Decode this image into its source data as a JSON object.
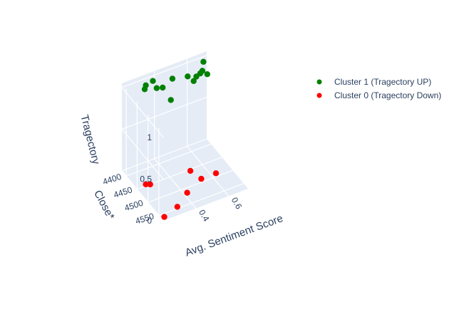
{
  "chart_data": {
    "type": "scatter3d",
    "x_label": "Avg. Sentiment Score",
    "y_label": "Close*",
    "z_label": "Tragectory",
    "x_ticks": [
      "0.4",
      "0.6"
    ],
    "y_ticks": [
      "4400",
      "4450",
      "4500",
      "4550"
    ],
    "z_ticks": [
      "0",
      "0.5",
      "1"
    ],
    "legend_position": "top-right",
    "series": [
      {
        "name": "Cluster 1 (Tragectory UP)",
        "color": "#008000",
        "points": [
          {
            "x": 0.3,
            "y": 4410,
            "z": 1
          },
          {
            "x": 0.32,
            "y": 4400,
            "z": 1
          },
          {
            "x": 0.36,
            "y": 4420,
            "z": 1
          },
          {
            "x": 0.37,
            "y": 4395,
            "z": 1
          },
          {
            "x": 0.39,
            "y": 4425,
            "z": 1
          },
          {
            "x": 0.38,
            "y": 4470,
            "z": 1
          },
          {
            "x": 0.47,
            "y": 4410,
            "z": 1
          },
          {
            "x": 0.55,
            "y": 4420,
            "z": 1
          },
          {
            "x": 0.56,
            "y": 4440,
            "z": 1
          },
          {
            "x": 0.59,
            "y": 4430,
            "z": 1
          },
          {
            "x": 0.62,
            "y": 4425,
            "z": 1
          },
          {
            "x": 0.64,
            "y": 4420,
            "z": 1
          },
          {
            "x": 0.65,
            "y": 4435,
            "z": 1
          },
          {
            "x": 0.68,
            "y": 4395,
            "z": 1
          }
        ]
      },
      {
        "name": "Cluster 0 (Tragectory Down)",
        "color": "#ff0000",
        "points": [
          {
            "x": 0.26,
            "y": 4445,
            "z": 0
          },
          {
            "x": 0.28,
            "y": 4450,
            "z": 0
          },
          {
            "x": 0.52,
            "y": 4455,
            "z": 0
          },
          {
            "x": 0.54,
            "y": 4490,
            "z": 0
          },
          {
            "x": 0.63,
            "y": 4490,
            "z": 0
          },
          {
            "x": 0.42,
            "y": 4515,
            "z": 0
          },
          {
            "x": 0.32,
            "y": 4545,
            "z": 0
          },
          {
            "x": 0.22,
            "y": 4560,
            "z": 0
          }
        ]
      }
    ]
  }
}
